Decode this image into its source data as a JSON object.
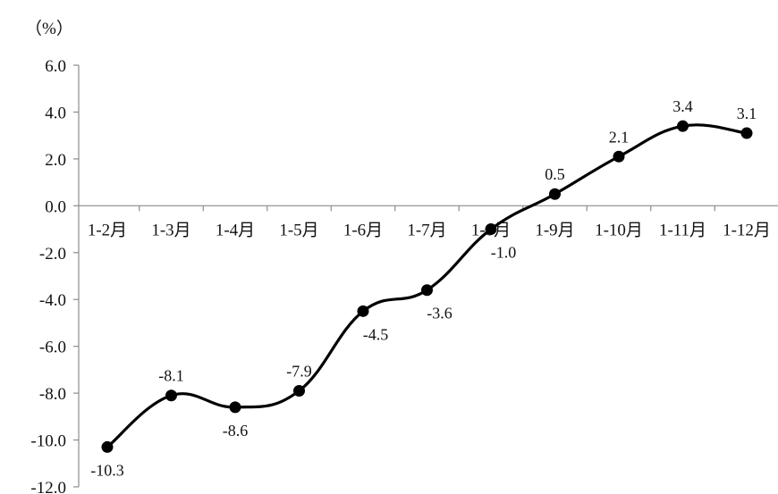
{
  "chart_data": {
    "type": "line",
    "unit_label": "（%）",
    "categories": [
      "1-2月",
      "1-3月",
      "1-4月",
      "1-5月",
      "1-6月",
      "1-7月",
      "1-8月",
      "1-9月",
      "1-10月",
      "1-11月",
      "1-12月"
    ],
    "values": [
      -10.3,
      -8.1,
      -8.6,
      -7.9,
      -4.5,
      -3.6,
      -1.0,
      0.5,
      2.1,
      3.4,
      3.1
    ],
    "data_labels": [
      "-10.3",
      "-8.1",
      "-8.6",
      "-7.9",
      "-4.5",
      "-3.6",
      "-1.0",
      "0.5",
      "2.1",
      "3.4",
      "3.1"
    ],
    "yticks": [
      "6.0",
      "4.0",
      "2.0",
      "0.0",
      "-2.0",
      "-4.0",
      "-6.0",
      "-8.0",
      "-10.0",
      "-12.0"
    ],
    "ylim": [
      -12,
      6
    ],
    "grid": false,
    "smooth": true,
    "line_color": "#000000"
  }
}
